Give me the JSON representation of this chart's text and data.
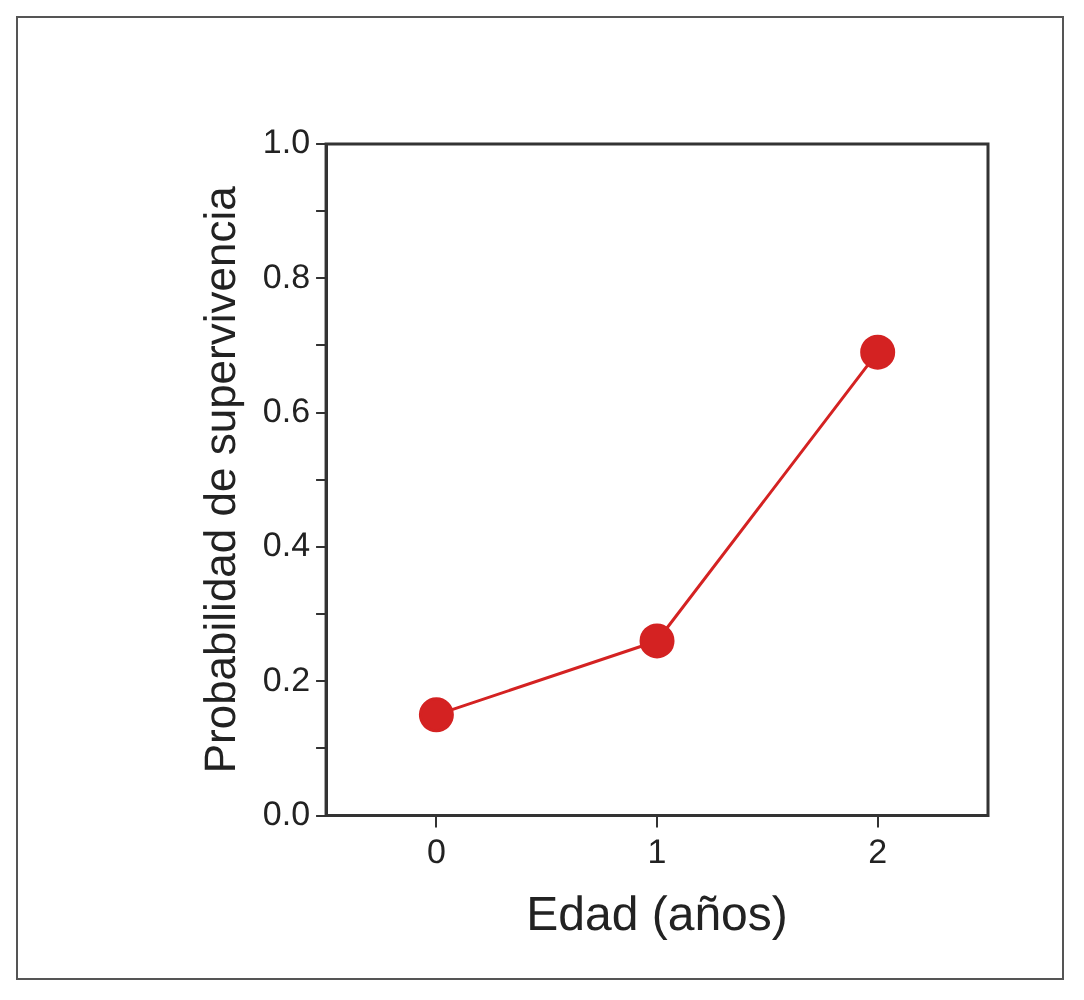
{
  "chart_data": {
    "type": "line",
    "xlabel": "Edad (años)",
    "ylabel": "Probabilidad de supervivencia",
    "x": [
      0,
      1,
      2
    ],
    "series": [
      {
        "color": "#d42222",
        "values": [
          0.15,
          0.26,
          0.69
        ]
      }
    ],
    "xlim": [
      -0.5,
      2.5
    ],
    "xticks": [
      0,
      1,
      2
    ],
    "ylim": [
      0,
      1
    ],
    "yticks": [
      "0.0",
      {
        "value": 0.1,
        "label": null
      },
      {
        "value": 0.2,
        "label": "0.2"
      },
      {
        "value": 0.3,
        "label": null
      },
      {
        "value": 0.4,
        "label": "0.4"
      },
      {
        "value": 0.5,
        "label": null
      },
      {
        "value": 0.6,
        "label": "0.6"
      },
      {
        "value": 0.7,
        "label": null
      },
      {
        "value": 0.8,
        "label": "0.8"
      },
      {
        "value": 0.9,
        "label": null
      },
      {
        "value": 1,
        "label": "1.0"
      }
    ],
    "grid": false,
    "legend": false,
    "marker": "circle",
    "line_style": "solid"
  }
}
